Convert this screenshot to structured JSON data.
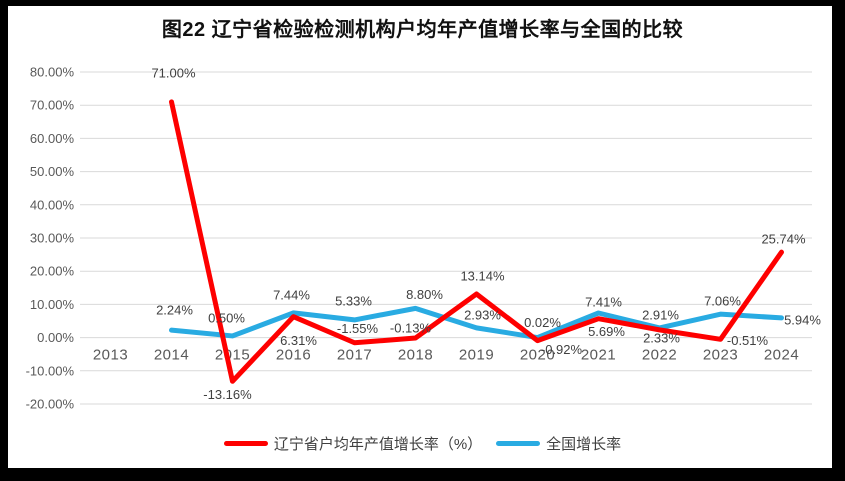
{
  "title": "图22  辽宁省检验检测机构户均年产值增长率与全国的比较",
  "chart_data": {
    "type": "line",
    "title": "图22  辽宁省检验检测机构户均年产值增长率与全国的比较",
    "categories": [
      "2013",
      "2014",
      "2015",
      "2016",
      "2017",
      "2018",
      "2019",
      "2020",
      "2021",
      "2022",
      "2023",
      "2024"
    ],
    "series": [
      {
        "name": "辽宁省户均年产值增长率（%）",
        "color": "#FE0000",
        "values": [
          null,
          71.0,
          -13.16,
          6.31,
          -1.55,
          -0.13,
          13.14,
          -0.92,
          5.69,
          2.33,
          -0.51,
          25.74
        ],
        "labels": [
          null,
          "71.00%",
          "-13.16%",
          "6.31%",
          "-1.55%",
          "-0.13%",
          "13.14%",
          "-0.92%",
          "5.69%",
          "2.33%",
          "-0.51%",
          "25.74%"
        ]
      },
      {
        "name": "全国增长率",
        "color": "#29ABE2",
        "values": [
          null,
          2.24,
          0.5,
          7.44,
          5.33,
          8.8,
          2.93,
          0.02,
          7.41,
          2.91,
          7.06,
          5.94
        ],
        "labels": [
          null,
          "2.24%",
          "0.50%",
          "7.44%",
          "5.33%",
          "8.80%",
          "2.93%",
          "0.02%",
          "7.41%",
          "2.91%",
          "7.06%",
          "5.94%"
        ]
      }
    ],
    "ylim": [
      -20,
      80
    ],
    "y_ticks": [
      "80.00%",
      "70.00%",
      "60.00%",
      "50.00%",
      "40.00%",
      "30.00%",
      "20.00%",
      "10.00%",
      "0.00%",
      "-10.00%",
      "-20.00%"
    ],
    "grid": true,
    "legend_position": "bottom",
    "colors": {
      "gridline": "#D9D9D9",
      "axis_text": "#595959",
      "data_label_text": "#404040",
      "frame": "#000000",
      "background": "#FFFFFF"
    }
  }
}
